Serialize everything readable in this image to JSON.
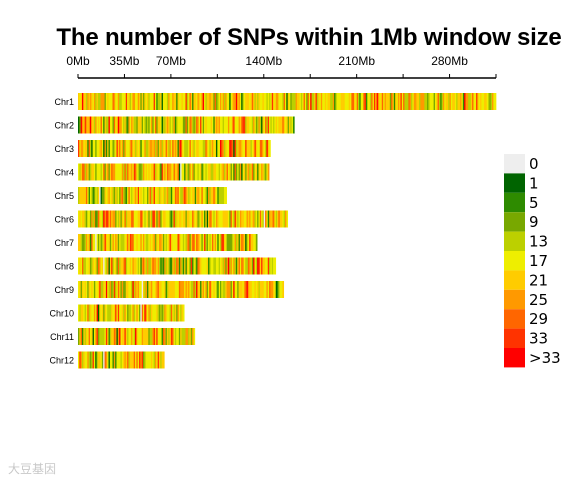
{
  "chart_data": {
    "type": "heatmap",
    "title": "The number of SNPs within 1Mb window size",
    "x_ticks": [
      "0Mb",
      "35Mb",
      "70Mb",
      "140Mb",
      "210Mb",
      "280Mb"
    ],
    "x_tick_values": [
      0,
      35,
      70,
      140,
      210,
      280
    ],
    "x_range_mb": [
      0,
      315
    ],
    "chromosomes": [
      {
        "name": "Chr1",
        "length_mb": 315
      },
      {
        "name": "Chr2",
        "length_mb": 163
      },
      {
        "name": "Chr3",
        "length_mb": 145
      },
      {
        "name": "Chr4",
        "length_mb": 144
      },
      {
        "name": "Chr5",
        "length_mb": 112
      },
      {
        "name": "Chr6",
        "length_mb": 158
      },
      {
        "name": "Chr7",
        "length_mb": 135
      },
      {
        "name": "Chr8",
        "length_mb": 149
      },
      {
        "name": "Chr9",
        "length_mb": 155
      },
      {
        "name": "Chr10",
        "length_mb": 80
      },
      {
        "name": "Chr11",
        "length_mb": 88
      },
      {
        "name": "Chr12",
        "length_mb": 65
      }
    ],
    "legend": {
      "labels": [
        "0",
        "1",
        "5",
        "9",
        "13",
        "17",
        "21",
        "25",
        "29",
        "33",
        ">33"
      ],
      "colors": [
        "#eeeeee",
        "#006400",
        "#2e8b00",
        "#78a800",
        "#bcd000",
        "#eeee00",
        "#ffcc00",
        "#ff9900",
        "#ff6600",
        "#ff3300",
        "#ff0000"
      ]
    },
    "bin_weights": [
      0.004,
      0.01,
      0.03,
      0.07,
      0.16,
      0.27,
      0.22,
      0.12,
      0.06,
      0.035,
      0.021
    ]
  },
  "watermark": "大豆基因"
}
